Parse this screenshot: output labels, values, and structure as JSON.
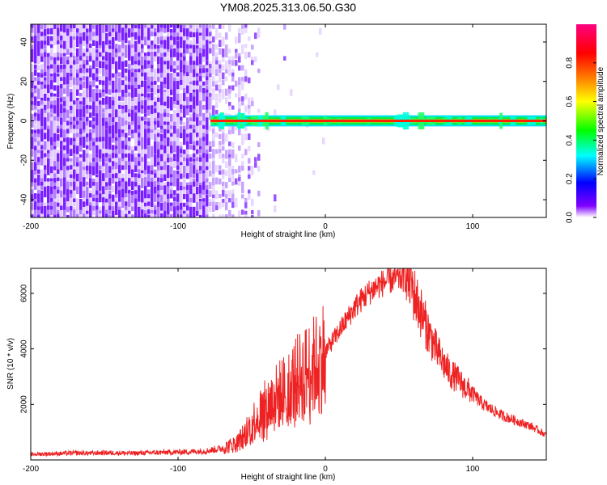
{
  "figure_title": "YM08.2025.313.06.50.G30",
  "chart_data": [
    {
      "type": "heatmap",
      "xlabel": "Height of straight line (km)",
      "ylabel": "Frequency (Hz)",
      "xlim": [
        -200,
        150
      ],
      "ylim": [
        -49,
        49
      ],
      "xticks": [
        -200,
        -100,
        0,
        100
      ],
      "yticks": [
        -40,
        -20,
        0,
        20,
        40
      ],
      "colorbar": {
        "label": "Normalized spectral amplitude",
        "range": [
          0,
          1
        ],
        "ticks": [
          "0.0",
          "0.2",
          "0.4",
          "0.6",
          "0.8"
        ],
        "tick_values": [
          0.0,
          0.2,
          0.4,
          0.6,
          0.8
        ],
        "colors": [
          "#ffffff",
          "#8000ff",
          "#0000ff",
          "#00ffff",
          "#00ff00",
          "#ffff00",
          "#ff8000",
          "#ff0000",
          "#ff0080"
        ]
      },
      "description_values": {
        "noise_region_x": [
          -200,
          -45
        ],
        "signal_band_x": [
          -78,
          150
        ],
        "signal_band_center_hz": 0,
        "signal_band_halfwidth_hz": 2
      }
    },
    {
      "type": "line",
      "xlabel": "Height of straight line (km)",
      "ylabel": "SNR (10 * v/v)",
      "xlim": [
        -200,
        150
      ],
      "ylim": [
        0,
        6900
      ],
      "xticks": [
        -200,
        -100,
        0,
        100
      ],
      "yticks": [
        2000,
        4000,
        6000
      ],
      "series": [
        {
          "color": "#ee2222",
          "x": [
            -200,
            -190,
            -180,
            -170,
            -160,
            -150,
            -140,
            -130,
            -120,
            -110,
            -100,
            -90,
            -80,
            -70,
            -60,
            -55,
            -50,
            -45,
            -40,
            -35,
            -30,
            -25,
            -20,
            -15,
            -10,
            -5,
            0,
            5,
            10,
            15,
            20,
            25,
            30,
            35,
            40,
            45,
            50,
            55,
            58,
            60,
            65,
            70,
            75,
            80,
            85,
            90,
            95,
            100,
            105,
            110,
            115,
            120,
            125,
            130,
            135,
            140,
            145,
            150
          ],
          "y": [
            200,
            220,
            230,
            250,
            240,
            260,
            250,
            240,
            260,
            270,
            280,
            300,
            330,
            420,
            600,
            900,
            1300,
            1700,
            1900,
            2200,
            2400,
            2600,
            2900,
            3100,
            3300,
            3500,
            3900,
            4300,
            4700,
            5100,
            5500,
            5800,
            6050,
            6250,
            6400,
            6500,
            6550,
            6550,
            6450,
            6000,
            5300,
            4600,
            4000,
            3500,
            3100,
            2900,
            2600,
            2400,
            2100,
            1900,
            1750,
            1600,
            1500,
            1400,
            1300,
            1200,
            1050,
            900
          ]
        }
      ]
    }
  ]
}
